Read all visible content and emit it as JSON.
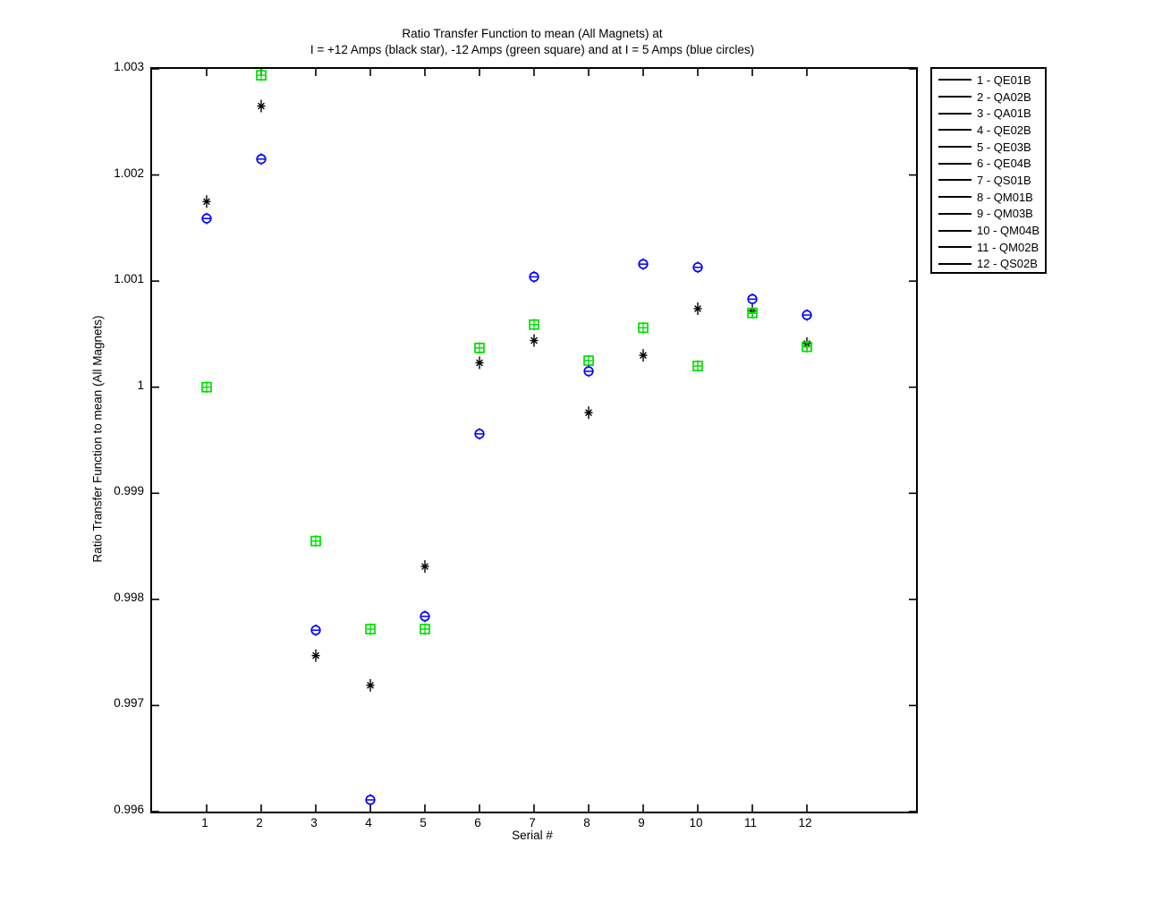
{
  "figure": {
    "background": "#ffffff"
  },
  "chart_data": {
    "type": "scatter",
    "title_line1": "Ratio Transfer Function to mean (All Magnets) at",
    "title_line2": "I = +12 Amps (black star), -12 Amps (green square) and at I = 5 Amps (blue circles)",
    "xlabel": "Serial #",
    "ylabel": "Ratio Transfer Function to mean (All Magnets)",
    "xlim": [
      0,
      14
    ],
    "ylim": [
      0.996,
      1.003
    ],
    "x_ticks": [
      1,
      2,
      3,
      4,
      5,
      6,
      7,
      8,
      9,
      10,
      11,
      12
    ],
    "y_ticks": [
      "0.996",
      "0.997",
      "0.998",
      "0.999",
      "1",
      "1.001",
      "1.002",
      "1.003"
    ],
    "grid": false,
    "error_bars": "tiny (caps overlap markers)",
    "x": [
      1,
      2,
      3,
      4,
      5,
      6,
      7,
      8,
      9,
      10,
      11,
      12
    ],
    "series": [
      {
        "name": "I = +12 Amps (black star)",
        "marker": "star",
        "color": "#000000",
        "values": [
          1.00175,
          1.00265,
          0.99747,
          0.99719,
          0.99831,
          1.00023,
          1.00044,
          0.99976,
          1.0003,
          1.00074,
          1.00072,
          1.00041
        ]
      },
      {
        "name": "I = -12 Amps (green square)",
        "marker": "square",
        "color": "#00dd00",
        "values": [
          1.0,
          1.00294,
          0.99855,
          0.99772,
          0.99772,
          1.00037,
          1.00059,
          1.00025,
          1.00056,
          1.0002,
          1.0007,
          1.00038
        ]
      },
      {
        "name": "I = 5 Amps (blue circles)",
        "marker": "circle",
        "color": "#0000ff",
        "values": [
          1.00159,
          1.00215,
          0.99771,
          0.99611,
          0.99784,
          0.99956,
          1.00104,
          1.00015,
          1.00116,
          1.00113,
          1.00083,
          1.00068
        ]
      }
    ],
    "legend": {
      "position": "outside-top-right",
      "entries": [
        "1 - QE01B",
        "2 - QA02B",
        "3 - QA01B",
        "4 - QE02B",
        "5 - QE03B",
        "6 - QE04B",
        "7 - QS01B",
        "8 - QM01B",
        "9 - QM03B",
        "10 - QM04B",
        "11 - QM02B",
        "12 - QS02B"
      ]
    }
  }
}
